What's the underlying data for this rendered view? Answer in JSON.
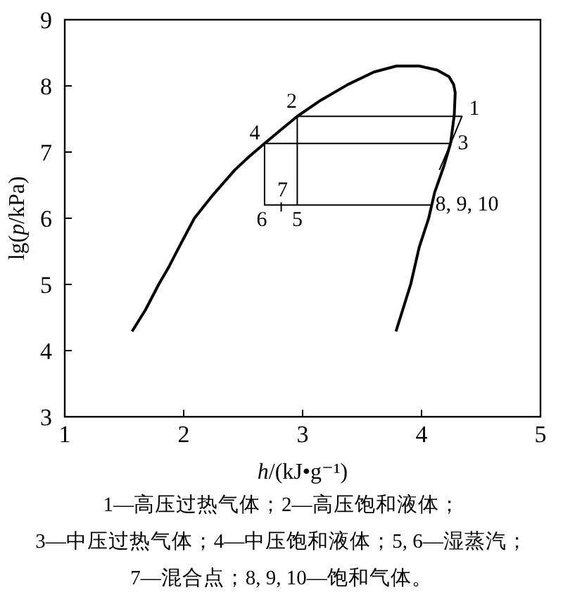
{
  "chart_data": {
    "type": "line",
    "xlabel": "h/(kJ•g⁻¹)",
    "ylabel": "lg(p/kPa)",
    "xlim": [
      1,
      5
    ],
    "ylim": [
      3,
      9
    ],
    "xticks": [
      1,
      2,
      3,
      4,
      5
    ],
    "yticks": [
      3,
      4,
      5,
      6,
      7,
      8,
      9
    ],
    "series": [
      {
        "color": "#000000",
        "x": [
          1.566,
          1.68,
          1.79,
          1.88,
          1.96,
          2.09,
          2.245,
          2.43,
          2.55,
          2.68,
          2.82,
          2.955,
          3.15,
          3.38,
          3.6,
          3.79,
          3.98,
          4.13,
          4.23,
          4.27,
          4.283,
          4.275,
          4.245,
          4.19,
          4.11,
          4.06,
          3.98,
          3.91,
          3.785
        ],
        "values": [
          4.29,
          4.62,
          5.0,
          5.28,
          5.56,
          6.0,
          6.35,
          6.73,
          6.93,
          7.13,
          7.34,
          7.54,
          7.78,
          8.02,
          8.21,
          8.3,
          8.3,
          8.24,
          8.14,
          8.02,
          7.9,
          7.56,
          7.14,
          6.8,
          6.39,
          6.0,
          5.56,
          5.01,
          4.29
        ]
      },
      {
        "color": "#000000",
        "x": [
          2.955,
          4.34,
          4.245,
          4.15
        ],
        "values": [
          7.54,
          7.54,
          7.13,
          6.73
        ]
      },
      {
        "color": "#000000",
        "x": [
          4.245,
          2.68,
          2.68,
          4.08
        ],
        "values": [
          7.13,
          7.13,
          6.2,
          6.2
        ]
      },
      {
        "color": "#000000",
        "x": [
          2.955,
          2.955
        ],
        "values": [
          7.54,
          6.2
        ]
      },
      {
        "color": "#000000",
        "x": [
          2.82,
          2.82
        ],
        "values": [
          6.24,
          6.1
        ]
      }
    ],
    "annotations": [
      {
        "text": "1",
        "x": 4.34,
        "y": 7.54
      },
      {
        "text": "2",
        "x": 2.955,
        "y": 7.54
      },
      {
        "text": "3",
        "x": 4.245,
        "y": 7.13
      },
      {
        "text": "4",
        "x": 2.68,
        "y": 7.13
      },
      {
        "text": "5",
        "x": 2.955,
        "y": 6.2
      },
      {
        "text": "6",
        "x": 2.68,
        "y": 6.2
      },
      {
        "text": "7",
        "x": 2.82,
        "y": 6.2
      },
      {
        "text": "8, 9, 10",
        "x": 4.08,
        "y": 6.2
      },
      "1—高压过热气体；2—高压饱和液体；",
      "3—中压过热气体；4—中压饱和液体；5, 6—湿蒸汽；",
      "7—混合点；8, 9, 10—饱和气体。"
    ]
  }
}
